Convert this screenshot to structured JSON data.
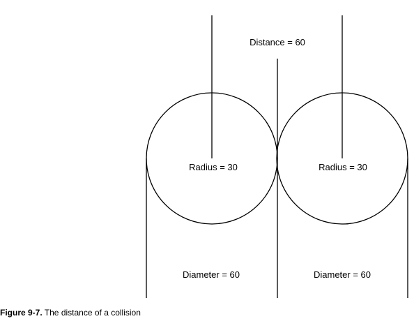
{
  "labels": {
    "distance": "Distance = 60",
    "radius_left": "Radius = 30",
    "radius_right": "Radius = 30",
    "diameter_left": "Diameter = 60",
    "diameter_right": "Diameter = 60"
  },
  "caption": {
    "label": "Figure 9-7.",
    "text": " The distance of a collision"
  },
  "colors": {
    "stroke": "#000000",
    "background": "#ffffff"
  }
}
